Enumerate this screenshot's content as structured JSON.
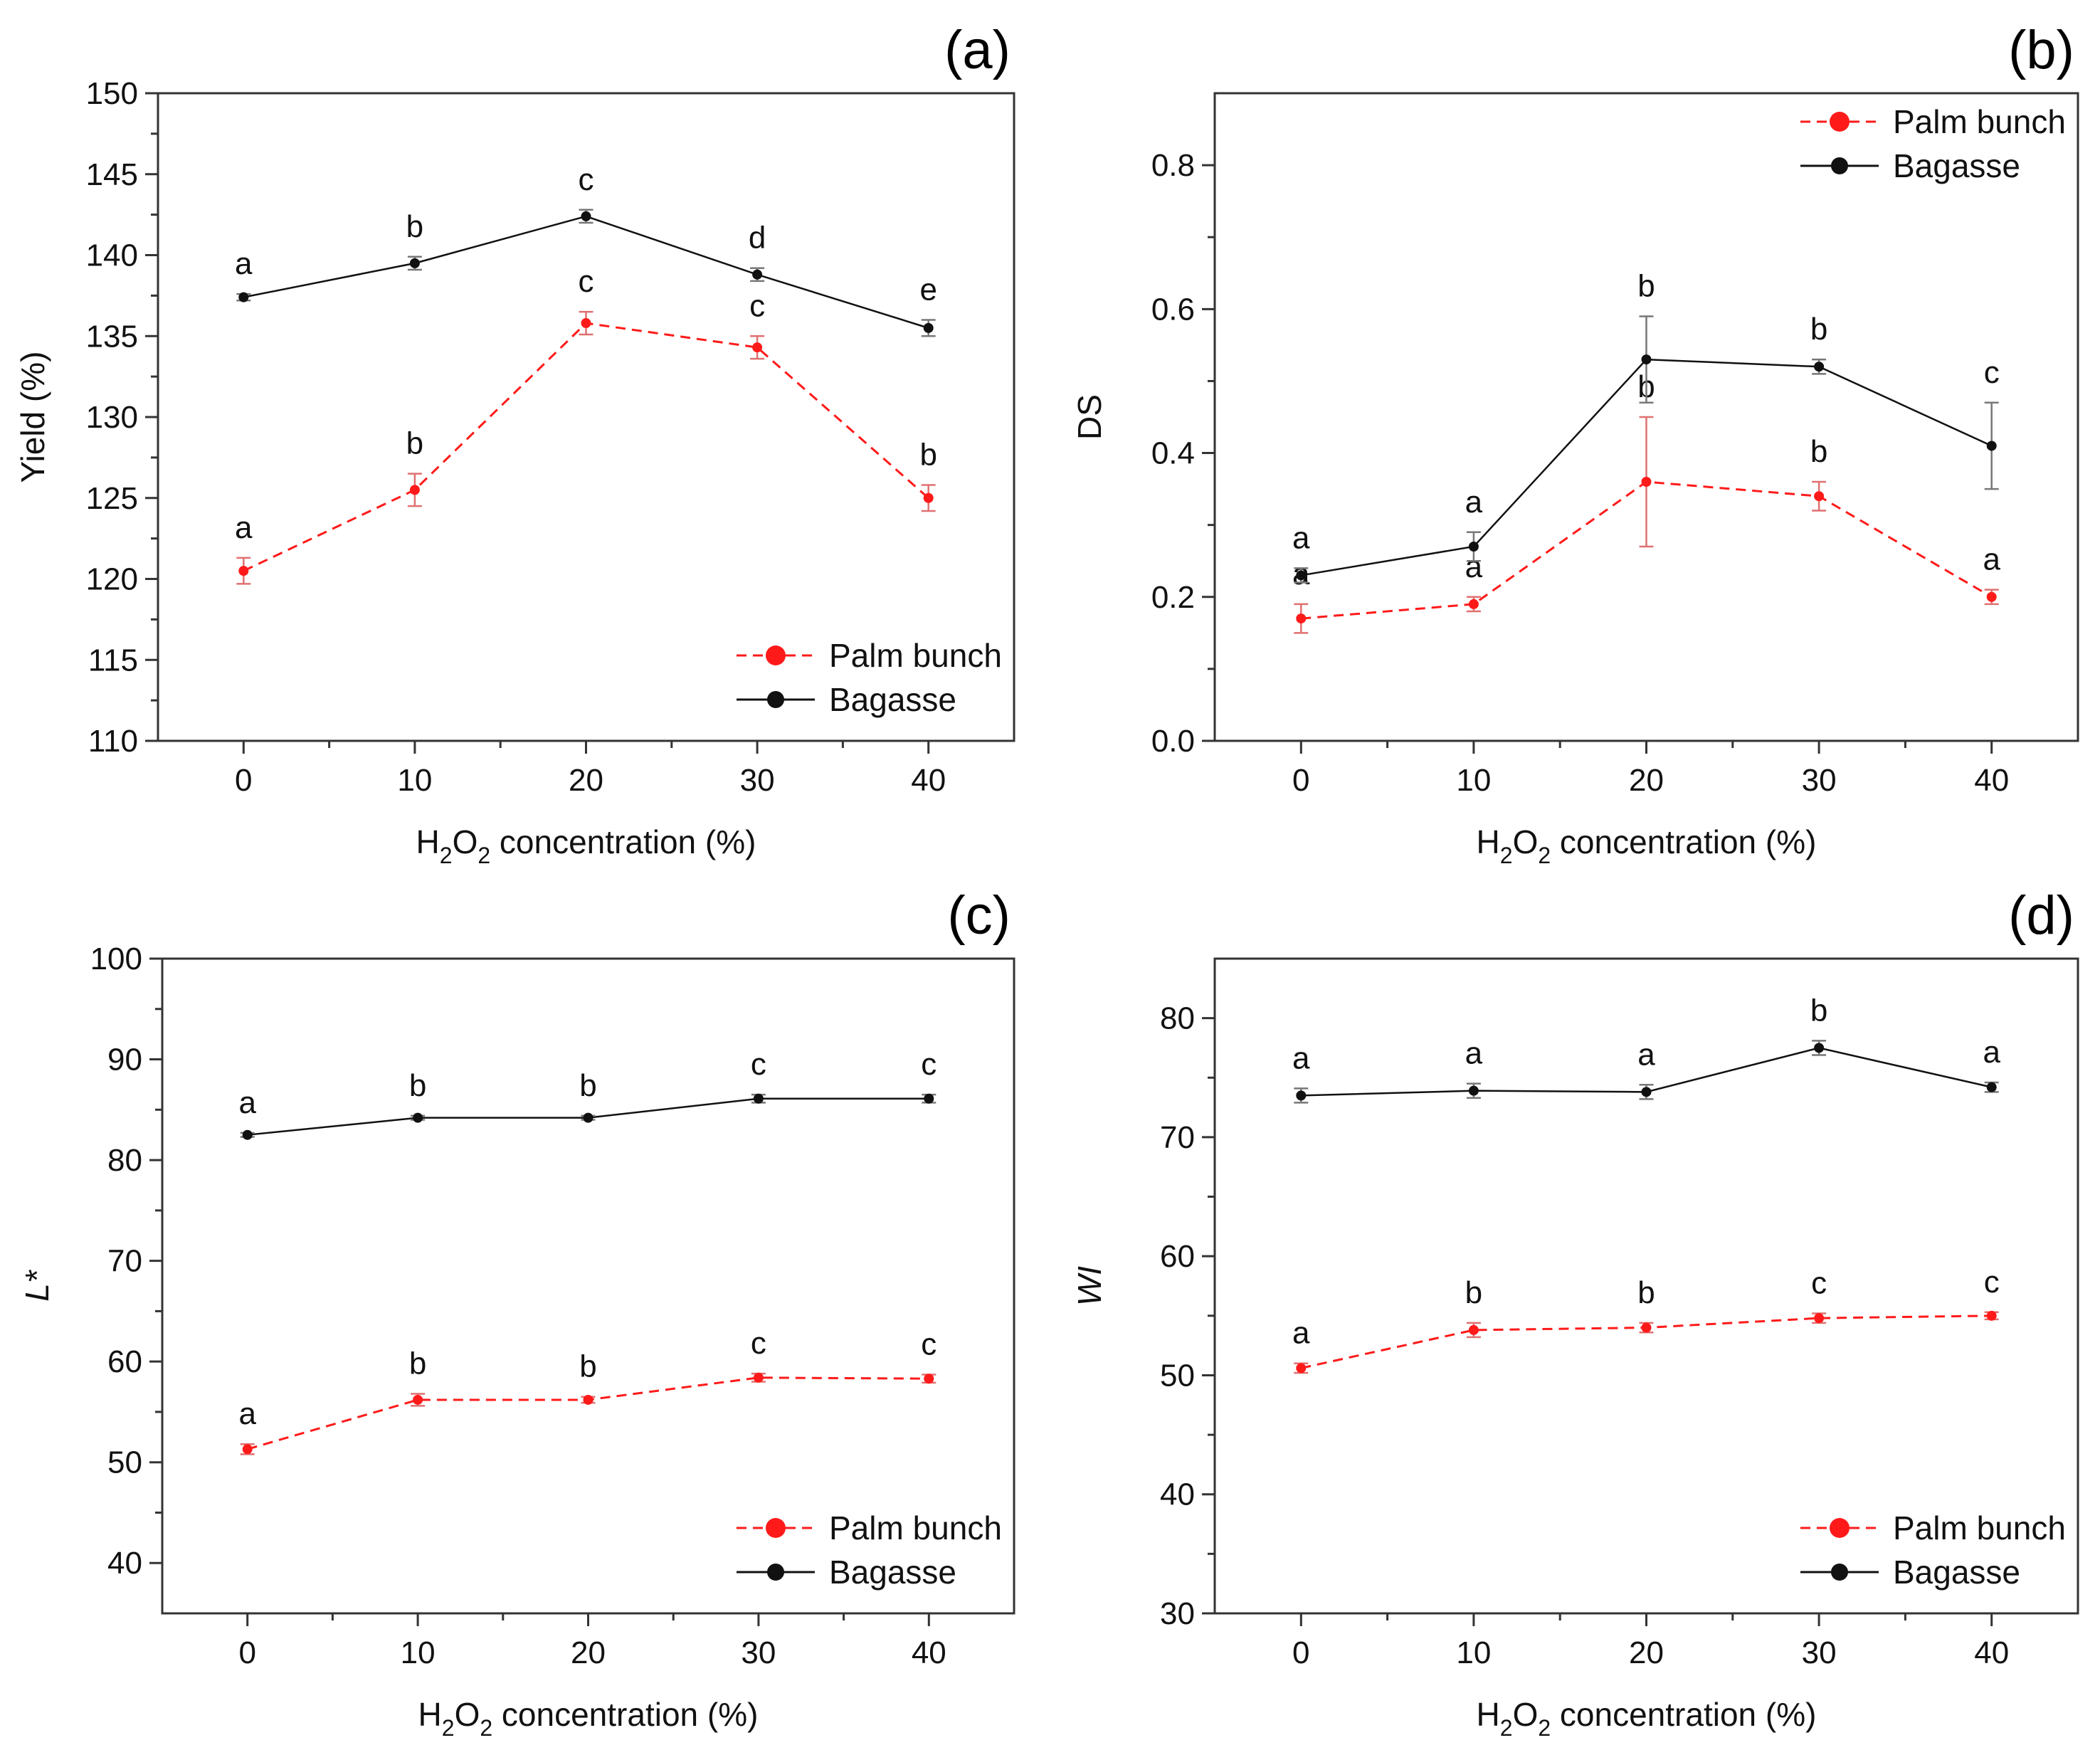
{
  "figure": {
    "colors": {
      "palm": "#ff1a1a",
      "bagasse": "#111111",
      "axis": "#333333",
      "errPalm": "#e07070",
      "errBag": "#777777"
    }
  },
  "chart_data": [
    {
      "panel": "(a)",
      "type": "line",
      "xlabel": "H2O2 concentration (%)",
      "ylabel": "Yield (%)",
      "ylabel_italic": false,
      "xlim": [
        -5,
        45
      ],
      "ylim": [
        110,
        150
      ],
      "x_ticks": [
        0,
        10,
        20,
        30,
        40
      ],
      "x_tick_labels": [
        "0",
        "10",
        "20",
        "30",
        "40"
      ],
      "y_ticks": [
        110,
        115,
        120,
        125,
        130,
        135,
        140,
        145,
        150
      ],
      "y_tick_labels": [
        "110",
        "115",
        "120",
        "125",
        "130",
        "135",
        "140",
        "145",
        "150"
      ],
      "legend": {
        "position": "bottom-right",
        "entries": [
          "Palm bunch",
          "Bagasse"
        ]
      },
      "series": [
        {
          "name": "Palm bunch",
          "style": "dashed",
          "color": "#ff1a1a",
          "x": [
            0,
            10,
            20,
            30,
            40
          ],
          "y": [
            120.5,
            125.5,
            135.8,
            134.3,
            125.0
          ],
          "err": [
            0.8,
            1.0,
            0.7,
            0.7,
            0.8
          ],
          "letters": [
            "a",
            "b",
            "c",
            "c",
            "b"
          ]
        },
        {
          "name": "Bagasse",
          "style": "solid",
          "color": "#111111",
          "x": [
            0,
            10,
            20,
            30,
            40
          ],
          "y": [
            137.4,
            139.5,
            142.4,
            138.8,
            135.5
          ],
          "err": [
            0.2,
            0.4,
            0.4,
            0.4,
            0.5
          ],
          "letters": [
            "a",
            "b",
            "c",
            "d",
            "e"
          ]
        }
      ]
    },
    {
      "panel": "(b)",
      "type": "line",
      "xlabel": "H2O2 concentration (%)",
      "ylabel": "DS",
      "ylabel_italic": false,
      "xlim": [
        -5,
        45
      ],
      "ylim": [
        0.0,
        0.9
      ],
      "x_ticks": [
        0,
        10,
        20,
        30,
        40
      ],
      "x_tick_labels": [
        "0",
        "10",
        "20",
        "30",
        "40"
      ],
      "y_ticks": [
        0.0,
        0.2,
        0.4,
        0.6,
        0.8
      ],
      "y_tick_labels": [
        "0.0",
        "0.2",
        "0.4",
        "0.6",
        "0.8"
      ],
      "legend": {
        "position": "top-right",
        "entries": [
          "Palm bunch",
          "Bagasse"
        ]
      },
      "series": [
        {
          "name": "Palm bunch",
          "style": "dashed",
          "color": "#ff1a1a",
          "x": [
            0,
            10,
            20,
            30,
            40
          ],
          "y": [
            0.17,
            0.19,
            0.36,
            0.34,
            0.2
          ],
          "err": [
            0.02,
            0.01,
            0.09,
            0.02,
            0.01
          ],
          "letters": [
            "a",
            "a",
            "b",
            "b",
            "a"
          ]
        },
        {
          "name": "Bagasse",
          "style": "solid",
          "color": "#111111",
          "x": [
            0,
            10,
            20,
            30,
            40
          ],
          "y": [
            0.23,
            0.27,
            0.53,
            0.52,
            0.41
          ],
          "err": [
            0.01,
            0.02,
            0.06,
            0.01,
            0.06
          ],
          "letters": [
            "a",
            "a",
            "b",
            "b",
            "c"
          ]
        }
      ]
    },
    {
      "panel": "(c)",
      "type": "line",
      "xlabel": "H2O2 concentration (%)",
      "ylabel": "L*",
      "ylabel_italic": true,
      "xlim": [
        -5,
        45
      ],
      "ylim": [
        35,
        100
      ],
      "x_ticks": [
        0,
        10,
        20,
        30,
        40
      ],
      "x_tick_labels": [
        "0",
        "10",
        "20",
        "30",
        "40"
      ],
      "y_ticks": [
        40,
        50,
        60,
        70,
        80,
        90,
        100
      ],
      "y_tick_labels": [
        "40",
        "50",
        "60",
        "70",
        "80",
        "90",
        "100"
      ],
      "legend": {
        "position": "bottom-right",
        "entries": [
          "Palm bunch",
          "Bagasse"
        ]
      },
      "series": [
        {
          "name": "Palm bunch",
          "style": "dashed",
          "color": "#ff1a1a",
          "x": [
            0,
            10,
            20,
            30,
            40
          ],
          "y": [
            51.3,
            56.2,
            56.2,
            58.4,
            58.3
          ],
          "err": [
            0.5,
            0.6,
            0.3,
            0.4,
            0.4
          ],
          "letters": [
            "a",
            "b",
            "b",
            "c",
            "c"
          ]
        },
        {
          "name": "Bagasse",
          "style": "solid",
          "color": "#111111",
          "x": [
            0,
            10,
            20,
            30,
            40
          ],
          "y": [
            82.5,
            84.2,
            84.2,
            86.1,
            86.1
          ],
          "err": [
            0.2,
            0.2,
            0.2,
            0.4,
            0.4
          ],
          "letters": [
            "a",
            "b",
            "b",
            "c",
            "c"
          ]
        }
      ]
    },
    {
      "panel": "(d)",
      "type": "line",
      "xlabel": "H2O2 concentration (%)",
      "ylabel": "WI",
      "ylabel_italic": true,
      "xlim": [
        -5,
        45
      ],
      "ylim": [
        30,
        85
      ],
      "x_ticks": [
        0,
        10,
        20,
        30,
        40
      ],
      "x_tick_labels": [
        "0",
        "10",
        "20",
        "30",
        "40"
      ],
      "y_ticks": [
        30,
        40,
        50,
        60,
        70,
        80
      ],
      "y_tick_labels": [
        "30",
        "40",
        "50",
        "60",
        "70",
        "80"
      ],
      "legend": {
        "position": "bottom-right",
        "entries": [
          "Palm bunch",
          "Bagasse"
        ]
      },
      "series": [
        {
          "name": "Palm bunch",
          "style": "dashed",
          "color": "#ff1a1a",
          "x": [
            0,
            10,
            20,
            30,
            40
          ],
          "y": [
            50.6,
            53.8,
            54.0,
            54.8,
            55.0
          ],
          "err": [
            0.4,
            0.6,
            0.4,
            0.4,
            0.3
          ],
          "letters": [
            "a",
            "b",
            "b",
            "c",
            "c"
          ]
        },
        {
          "name": "Bagasse",
          "style": "solid",
          "color": "#111111",
          "x": [
            0,
            10,
            20,
            30,
            40
          ],
          "y": [
            73.5,
            73.9,
            73.8,
            77.5,
            74.2
          ],
          "err": [
            0.6,
            0.6,
            0.6,
            0.6,
            0.4
          ],
          "letters": [
            "a",
            "a",
            "a",
            "b",
            "a"
          ]
        }
      ]
    }
  ]
}
